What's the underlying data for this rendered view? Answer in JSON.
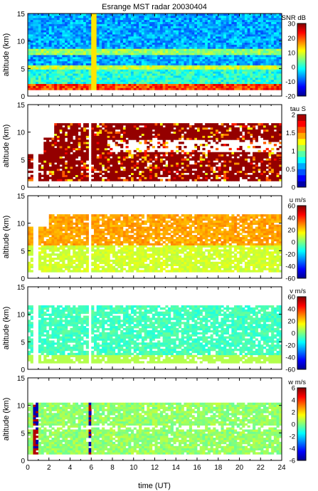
{
  "title": "Esrange MST radar 20030404",
  "xlabel": "time (UT)",
  "chart_data": [
    {
      "type": "heatmap",
      "ylabel": "altitude (km)",
      "xlim": [
        0,
        24
      ],
      "ylim": [
        0,
        15
      ],
      "yticks": [
        0,
        5,
        10,
        15
      ],
      "colorbar": {
        "label": "SNR dB",
        "range": [
          -20,
          30
        ],
        "ticks": [
          -20,
          -10,
          0,
          10,
          20,
          30
        ]
      },
      "grid": false
    },
    {
      "type": "heatmap",
      "ylabel": "altitude (km)",
      "xlim": [
        0,
        24
      ],
      "ylim": [
        0,
        15
      ],
      "yticks": [
        0,
        5,
        10,
        15
      ],
      "colorbar": {
        "label": "tau S",
        "range": [
          0,
          2
        ],
        "ticks": [
          0,
          0.5,
          1,
          1.5,
          2
        ]
      },
      "grid": false
    },
    {
      "type": "heatmap",
      "ylabel": "altitude (km)",
      "xlim": [
        0,
        24
      ],
      "ylim": [
        0,
        15
      ],
      "yticks": [
        0,
        5,
        10,
        15
      ],
      "colorbar": {
        "label": "u m/s",
        "range": [
          -60,
          60
        ],
        "ticks": [
          -60,
          -40,
          -20,
          0,
          20,
          40,
          60
        ]
      },
      "grid": false
    },
    {
      "type": "heatmap",
      "ylabel": "altitude (km)",
      "xlim": [
        0,
        24
      ],
      "ylim": [
        0,
        15
      ],
      "yticks": [
        0,
        5,
        10,
        15
      ],
      "colorbar": {
        "label": "v m/s",
        "range": [
          -60,
          60
        ],
        "ticks": [
          -60,
          -40,
          -20,
          0,
          20,
          40,
          60
        ]
      },
      "grid": false
    },
    {
      "type": "heatmap",
      "ylabel": "altitude (km)",
      "xlim": [
        0,
        24
      ],
      "ylim": [
        0,
        15
      ],
      "yticks": [
        0,
        5,
        10,
        15
      ],
      "xticks": [
        0,
        2,
        4,
        6,
        8,
        10,
        12,
        14,
        16,
        18,
        20,
        22,
        24
      ],
      "colorbar": {
        "label": "w m/s",
        "range": [
          -6,
          6
        ],
        "ticks": [
          -6,
          -4,
          -2,
          0,
          2,
          4,
          6
        ]
      },
      "grid": false
    }
  ]
}
